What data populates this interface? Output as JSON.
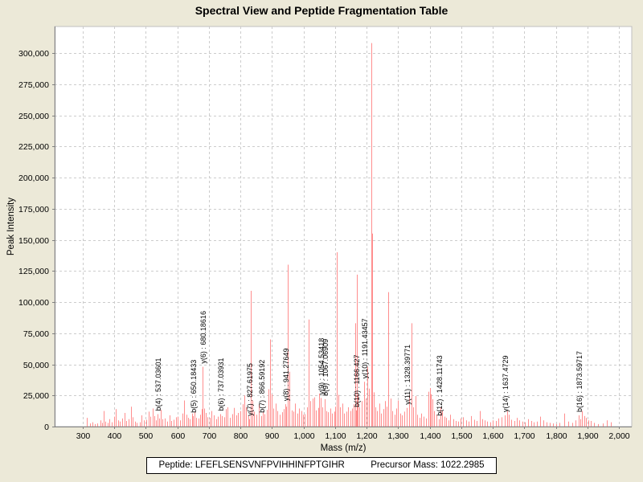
{
  "title": "Spectral View and Peptide Fragmentation Table",
  "footer": {
    "peptide_label": "Peptide:",
    "peptide_sequence": "LFEFLSENSVNFPVIHHINFPTGIHR",
    "precursor_label": "Precursor Mass:",
    "precursor_mass": "1022.2985"
  },
  "chart_data": {
    "type": "bar",
    "subtype": "mass-spectrum-stick-plot",
    "xlabel": "Mass (m/z)",
    "ylabel": "Peak Intensity",
    "xticks": {
      "min": 300,
      "max": 2000,
      "step": 100
    },
    "yticks": {
      "min": 0,
      "max": 300000,
      "step": 25000
    },
    "grid": true,
    "legend": "none",
    "colors": {
      "page_bg": "#ece9d8",
      "plot_bg": "#ffffff",
      "grid": "#cccccc",
      "axis": "#808080",
      "tick_text": "#000000",
      "peak": "#ff8e8e",
      "annotation_text": "#000000"
    },
    "annotated_peaks": [
      {
        "label": "b(4) : 537.03601",
        "mz": 537.03601,
        "intensity": 10000
      },
      {
        "label": "b(5) : 650.18433",
        "mz": 650.18433,
        "intensity": 8500
      },
      {
        "label": "y(6) : 680.18616",
        "mz": 680.18616,
        "intensity": 48000
      },
      {
        "label": "b(6) : 737.03931",
        "mz": 737.03931,
        "intensity": 10000
      },
      {
        "label": "y(7) : 827.61975",
        "mz": 827.61975,
        "intensity": 6000
      },
      {
        "label": "b(7) : 866.59192",
        "mz": 866.59192,
        "intensity": 8500
      },
      {
        "label": "y(8) : 941.27649",
        "mz": 941.27649,
        "intensity": 18000
      },
      {
        "label": "y(9) : 1054.53418",
        "mz": 1054.53418,
        "intensity": 23000
      },
      {
        "label": "b(9) : 1067.06909",
        "mz": 1067.06909,
        "intensity": 22000
      },
      {
        "label": "b(10) : 1166.427",
        "mz": 1166.427,
        "intensity": 13000
      },
      {
        "label": "y(10) : 1191.43457",
        "mz": 1191.43457,
        "intensity": 36000
      },
      {
        "label": "y(11) : 1328.39771",
        "mz": 1328.39771,
        "intensity": 15000
      },
      {
        "label": "b(12) : 1428.11743",
        "mz": 1428.11743,
        "intensity": 6000
      },
      {
        "label": "y(14) : 1637.4729",
        "mz": 1637.4729,
        "intensity": 9000
      },
      {
        "label": "b(16) : 1873.59717",
        "mz": 1873.59717,
        "intensity": 9000
      }
    ],
    "peaks": [
      [
        313,
        7000
      ],
      [
        322,
        2500
      ],
      [
        330,
        3500
      ],
      [
        339,
        2000
      ],
      [
        347,
        2500
      ],
      [
        355,
        5000
      ],
      [
        361,
        3000
      ],
      [
        366,
        12500
      ],
      [
        371,
        4000
      ],
      [
        378,
        3000
      ],
      [
        385,
        6000
      ],
      [
        392,
        3500
      ],
      [
        399,
        8000
      ],
      [
        405,
        14000
      ],
      [
        411,
        5000
      ],
      [
        418,
        4000
      ],
      [
        425,
        6500
      ],
      [
        432,
        11000
      ],
      [
        438,
        4500
      ],
      [
        445,
        6000
      ],
      [
        452,
        16000
      ],
      [
        458,
        7500
      ],
      [
        465,
        4000
      ],
      [
        472,
        3000
      ],
      [
        480,
        3500
      ],
      [
        487,
        9000
      ],
      [
        494,
        5000
      ],
      [
        501,
        5500
      ],
      [
        508,
        12000
      ],
      [
        515,
        8000
      ],
      [
        521,
        14500
      ],
      [
        528,
        8500
      ],
      [
        533,
        5000
      ],
      [
        542,
        6500
      ],
      [
        547,
        13500
      ],
      [
        553,
        6000
      ],
      [
        560,
        6500
      ],
      [
        568,
        4000
      ],
      [
        575,
        9000
      ],
      [
        581,
        4500
      ],
      [
        588,
        5500
      ],
      [
        595,
        7500
      ],
      [
        602,
        8000
      ],
      [
        609,
        5000
      ],
      [
        616,
        10500
      ],
      [
        622,
        21000
      ],
      [
        628,
        9500
      ],
      [
        634,
        7000
      ],
      [
        640,
        6000
      ],
      [
        646,
        10500
      ],
      [
        654,
        12000
      ],
      [
        659,
        7000
      ],
      [
        666,
        6500
      ],
      [
        672,
        9500
      ],
      [
        677,
        14000
      ],
      [
        684,
        14500
      ],
      [
        690,
        11000
      ],
      [
        696,
        7500
      ],
      [
        703,
        7000
      ],
      [
        709,
        12500
      ],
      [
        716,
        9000
      ],
      [
        722,
        6000
      ],
      [
        729,
        8000
      ],
      [
        742,
        8500
      ],
      [
        748,
        7500
      ],
      [
        754,
        14000
      ],
      [
        760,
        15500
      ],
      [
        767,
        7000
      ],
      [
        773,
        10000
      ],
      [
        780,
        15000
      ],
      [
        787,
        9000
      ],
      [
        793,
        11000
      ],
      [
        800,
        12500
      ],
      [
        806,
        18000
      ],
      [
        812,
        25000
      ],
      [
        818,
        15500
      ],
      [
        824,
        9000
      ],
      [
        833,
        109000
      ],
      [
        838,
        21000
      ],
      [
        844,
        12000
      ],
      [
        851,
        9500
      ],
      [
        858,
        18000
      ],
      [
        871,
        12000
      ],
      [
        877,
        10000
      ],
      [
        884,
        13500
      ],
      [
        889,
        30000
      ],
      [
        893,
        70000
      ],
      [
        899,
        26000
      ],
      [
        905,
        14500
      ],
      [
        911,
        18500
      ],
      [
        918,
        12500
      ],
      [
        925,
        9500
      ],
      [
        932,
        11500
      ],
      [
        937,
        14000
      ],
      [
        946,
        16000
      ],
      [
        950,
        130000
      ],
      [
        956,
        44000
      ],
      [
        962,
        13000
      ],
      [
        968,
        12000
      ],
      [
        974,
        18500
      ],
      [
        980,
        10500
      ],
      [
        986,
        14500
      ],
      [
        992,
        12500
      ],
      [
        998,
        9500
      ],
      [
        1004,
        10000
      ],
      [
        1010,
        15500
      ],
      [
        1016,
        86000
      ],
      [
        1021,
        20500
      ],
      [
        1028,
        22500
      ],
      [
        1034,
        23500
      ],
      [
        1040,
        13000
      ],
      [
        1046,
        15000
      ],
      [
        1050,
        26500
      ],
      [
        1060,
        15500
      ],
      [
        1072,
        12500
      ],
      [
        1078,
        11500
      ],
      [
        1085,
        14500
      ],
      [
        1091,
        10500
      ],
      [
        1097,
        12000
      ],
      [
        1101,
        16000
      ],
      [
        1106,
        140000
      ],
      [
        1110,
        25500
      ],
      [
        1116,
        15500
      ],
      [
        1122,
        18500
      ],
      [
        1129,
        10500
      ],
      [
        1135,
        12000
      ],
      [
        1142,
        15500
      ],
      [
        1148,
        12500
      ],
      [
        1154,
        14500
      ],
      [
        1159,
        18000
      ],
      [
        1164,
        83000
      ],
      [
        1168,
        122000
      ],
      [
        1172,
        25500
      ],
      [
        1178,
        15500
      ],
      [
        1184,
        20500
      ],
      [
        1196,
        22500
      ],
      [
        1202,
        48000
      ],
      [
        1208,
        30500
      ],
      [
        1214,
        308000
      ],
      [
        1217,
        155000
      ],
      [
        1222,
        27500
      ],
      [
        1228,
        15500
      ],
      [
        1234,
        12500
      ],
      [
        1240,
        18500
      ],
      [
        1246,
        10500
      ],
      [
        1252,
        14000
      ],
      [
        1258,
        20500
      ],
      [
        1263,
        16000
      ],
      [
        1269,
        108000
      ],
      [
        1275,
        22500
      ],
      [
        1281,
        12500
      ],
      [
        1288,
        9500
      ],
      [
        1294,
        14500
      ],
      [
        1300,
        21000
      ],
      [
        1307,
        10500
      ],
      [
        1313,
        9000
      ],
      [
        1320,
        12000
      ],
      [
        1334,
        25500
      ],
      [
        1343,
        83000
      ],
      [
        1348,
        15500
      ],
      [
        1354,
        24500
      ],
      [
        1360,
        9500
      ],
      [
        1367,
        7000
      ],
      [
        1374,
        10500
      ],
      [
        1381,
        8000
      ],
      [
        1388,
        6500
      ],
      [
        1395,
        28000
      ],
      [
        1400,
        31000
      ],
      [
        1404,
        26000
      ],
      [
        1409,
        22000
      ],
      [
        1415,
        12500
      ],
      [
        1421,
        9500
      ],
      [
        1434,
        15500
      ],
      [
        1440,
        12500
      ],
      [
        1446,
        8000
      ],
      [
        1452,
        7000
      ],
      [
        1459,
        5000
      ],
      [
        1466,
        9500
      ],
      [
        1474,
        6000
      ],
      [
        1482,
        4500
      ],
      [
        1490,
        4000
      ],
      [
        1498,
        6500
      ],
      [
        1506,
        7500
      ],
      [
        1515,
        5000
      ],
      [
        1524,
        4000
      ],
      [
        1532,
        8500
      ],
      [
        1541,
        5500
      ],
      [
        1550,
        4500
      ],
      [
        1558,
        12500
      ],
      [
        1566,
        6000
      ],
      [
        1574,
        5000
      ],
      [
        1583,
        4000
      ],
      [
        1592,
        3500
      ],
      [
        1601,
        5000
      ],
      [
        1610,
        4500
      ],
      [
        1618,
        6500
      ],
      [
        1627,
        7500
      ],
      [
        1645,
        12500
      ],
      [
        1651,
        9500
      ],
      [
        1659,
        5500
      ],
      [
        1668,
        4500
      ],
      [
        1676,
        7000
      ],
      [
        1685,
        5000
      ],
      [
        1694,
        4000
      ],
      [
        1703,
        3500
      ],
      [
        1712,
        6000
      ],
      [
        1721,
        4500
      ],
      [
        1730,
        3500
      ],
      [
        1740,
        4000
      ],
      [
        1750,
        8000
      ],
      [
        1760,
        5000
      ],
      [
        1770,
        3500
      ],
      [
        1780,
        3000
      ],
      [
        1790,
        2500
      ],
      [
        1800,
        2000
      ],
      [
        1812,
        3000
      ],
      [
        1826,
        10500
      ],
      [
        1840,
        4000
      ],
      [
        1853,
        3000
      ],
      [
        1862,
        5000
      ],
      [
        1878,
        6000
      ],
      [
        1883,
        12500
      ],
      [
        1890,
        8500
      ],
      [
        1896,
        7000
      ],
      [
        1903,
        5000
      ],
      [
        1910,
        4500
      ],
      [
        1922,
        3000
      ],
      [
        1935,
        2000
      ],
      [
        1950,
        2500
      ],
      [
        1962,
        5000
      ],
      [
        1975,
        3500
      ]
    ]
  }
}
